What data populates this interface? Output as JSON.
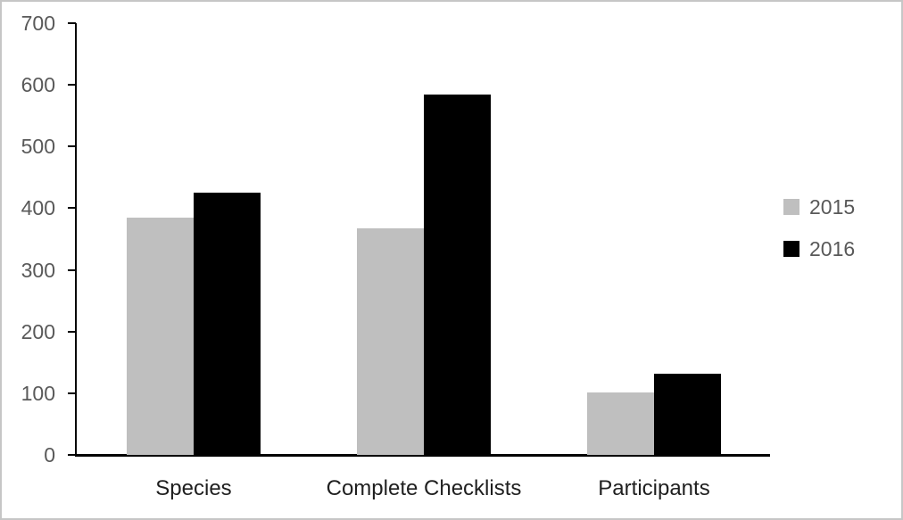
{
  "chart_data": {
    "type": "bar",
    "title": "",
    "xlabel": "",
    "ylabel": "",
    "categories": [
      "Species",
      "Complete Checklists",
      "Participants"
    ],
    "series": [
      {
        "name": "2015",
        "color": "#bfbfbf",
        "values": [
          384,
          367,
          101
        ]
      },
      {
        "name": "2016",
        "color": "#000000",
        "values": [
          425,
          584,
          131
        ]
      }
    ],
    "ylim": [
      0,
      700
    ],
    "yticks": [
      0,
      100,
      200,
      300,
      400,
      500,
      600,
      700
    ],
    "grid": false,
    "legend_position": "right",
    "axis_color": "#000000",
    "tick_label_color": "#595959",
    "category_label_color": "#1f1f1f",
    "frame_border_color": "#c6c6c6",
    "background_color": "#ffffff"
  }
}
